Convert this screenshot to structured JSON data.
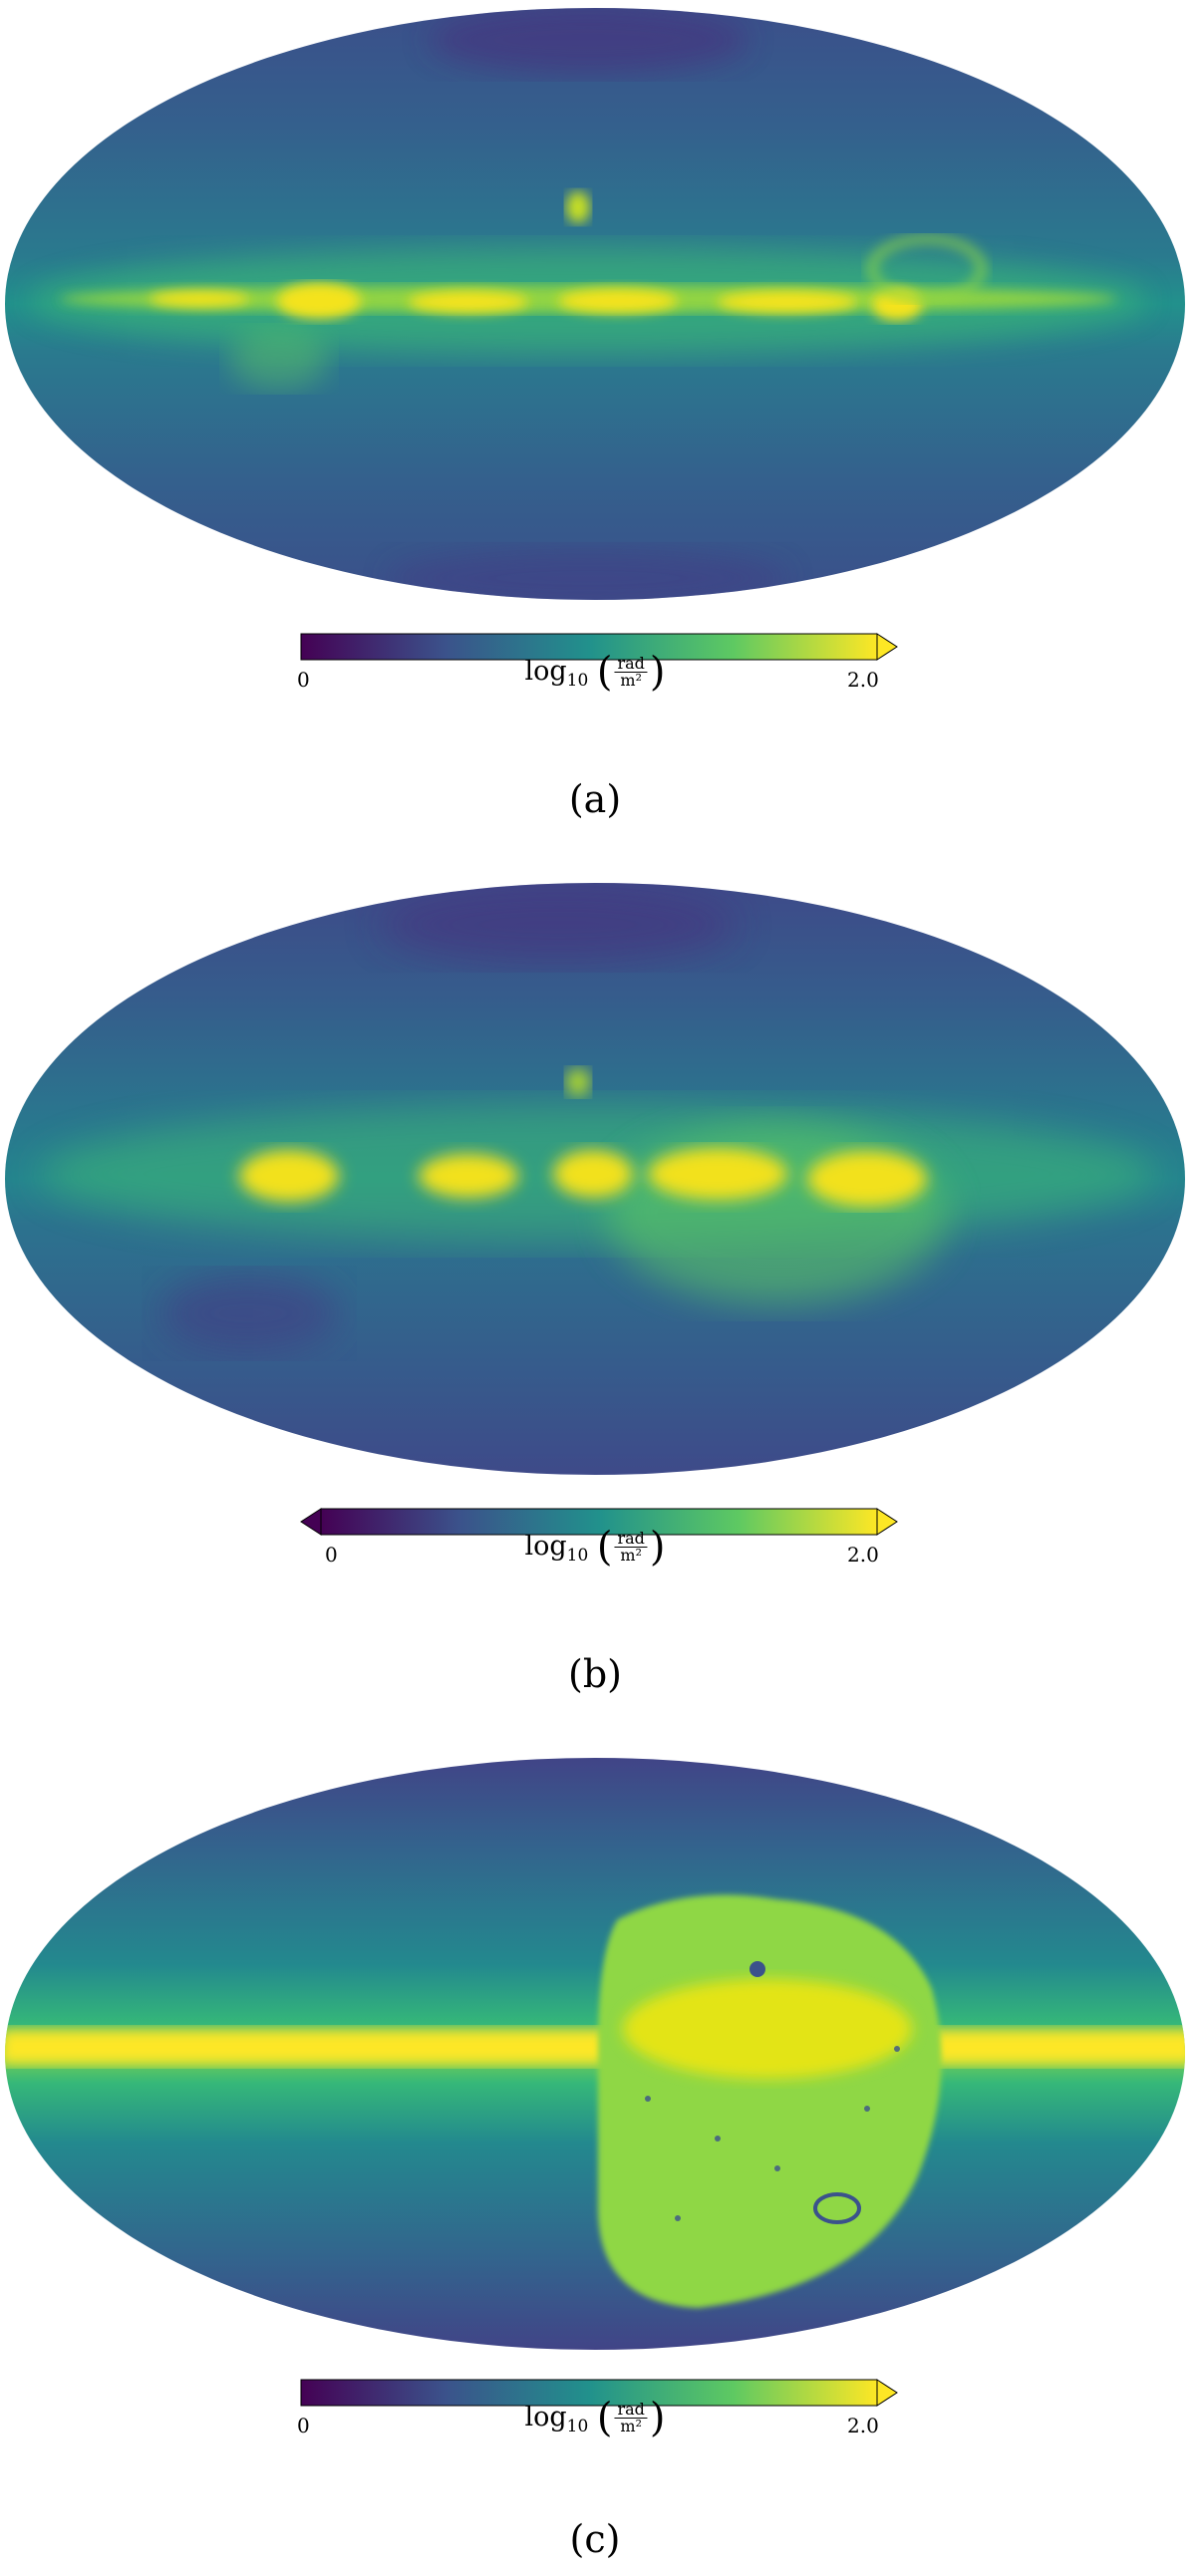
{
  "panels": [
    {
      "id": "a",
      "caption": "(a)",
      "colorbar": {
        "min_label": "0",
        "max_label": "2.0",
        "label_main": "log",
        "label_sub": "10",
        "label_unit_num": "rad",
        "label_unit_den": "m²",
        "extend": "max"
      },
      "map": {
        "projection": "mollweide",
        "colormap": "viridis",
        "background_color": "#2f6a8e",
        "plane_color": "#f4e31f"
      }
    },
    {
      "id": "b",
      "caption": "(b)",
      "colorbar": {
        "min_label": "0",
        "max_label": "2.0",
        "label_main": "log",
        "label_sub": "10",
        "label_unit_num": "rad",
        "label_unit_den": "m²",
        "extend": "both"
      },
      "map": {
        "projection": "mollweide",
        "colormap": "viridis",
        "background_color": "#2e6589",
        "plane_color": "#f2e11f"
      }
    },
    {
      "id": "c",
      "caption": "(c)",
      "colorbar": {
        "min_label": "0",
        "max_label": "2.0",
        "label_main": "log",
        "label_sub": "10",
        "label_unit_num": "rad",
        "label_unit_den": "m²",
        "extend": "max"
      },
      "map": {
        "projection": "mollweide",
        "colormap": "viridis",
        "background_color": "#25858e",
        "plane_color": "#fde725"
      }
    }
  ],
  "colormap_stops": [
    "#440154",
    "#3b528b",
    "#21918c",
    "#5ec962",
    "#fde725"
  ]
}
